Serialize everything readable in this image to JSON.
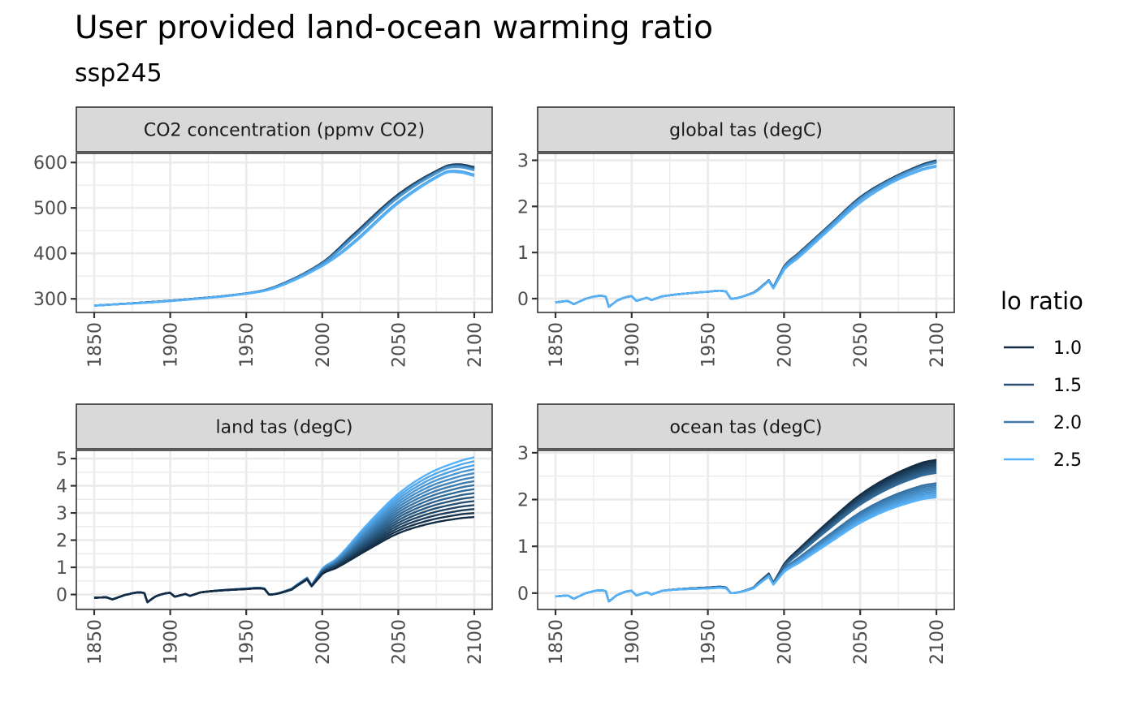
{
  "title": "User provided land-ocean warming ratio",
  "subtitle": "ssp245",
  "chart_data": [
    {
      "type": "line",
      "panel": "CO2 concentration (ppmv CO2)",
      "xlim": [
        1850,
        2100
      ],
      "x_ticks": [
        1850,
        1900,
        1950,
        2000,
        2050,
        2100
      ],
      "ylim": [
        270,
        620
      ],
      "y_ticks": [
        300,
        400,
        500,
        600
      ],
      "grid": true,
      "anchors_x": [
        1850,
        1900,
        1950,
        1970,
        2000,
        2020,
        2050,
        2080,
        2090,
        2100
      ],
      "anchors_low_ratio": [
        285,
        296,
        312,
        328,
        380,
        440,
        530,
        590,
        596,
        590
      ],
      "anchors_high_ratio": [
        285,
        295,
        311,
        325,
        372,
        420,
        510,
        575,
        578,
        570
      ]
    },
    {
      "type": "line",
      "panel": "global tas (degC)",
      "xlim": [
        1850,
        2100
      ],
      "x_ticks": [
        1850,
        1900,
        1950,
        2000,
        2050,
        2100
      ],
      "ylim": [
        -0.3,
        3.15
      ],
      "y_ticks": [
        0,
        1,
        2,
        3
      ],
      "grid": true,
      "anchors_x": [
        1850,
        1858,
        1862,
        1870,
        1883,
        1885,
        1890,
        1900,
        1903,
        1910,
        1913,
        1920,
        1950,
        1962,
        1965,
        1980,
        1983,
        1990,
        1993,
        2000,
        2010,
        2030,
        2050,
        2070,
        2090,
        2100
      ],
      "anchors_low_ratio": [
        -0.08,
        -0.05,
        -0.12,
        0.0,
        0.04,
        -0.18,
        -0.05,
        0.05,
        -0.05,
        0.02,
        -0.03,
        0.05,
        0.15,
        0.15,
        0.0,
        0.13,
        0.2,
        0.4,
        0.25,
        0.7,
        1.0,
        1.6,
        2.2,
        2.6,
        2.9,
        3.0
      ],
      "anchors_high_ratio": [
        -0.08,
        -0.05,
        -0.12,
        0.0,
        0.04,
        -0.18,
        -0.05,
        0.05,
        -0.05,
        0.02,
        -0.03,
        0.05,
        0.15,
        0.15,
        0.0,
        0.12,
        0.18,
        0.38,
        0.22,
        0.62,
        0.9,
        1.5,
        2.08,
        2.5,
        2.78,
        2.86
      ]
    },
    {
      "type": "line",
      "panel": "land tas (degC)",
      "xlim": [
        1850,
        2100
      ],
      "x_ticks": [
        1850,
        1900,
        1950,
        2000,
        2050,
        2100
      ],
      "ylim": [
        -0.55,
        5.3
      ],
      "y_ticks": [
        0,
        1,
        2,
        3,
        4,
        5
      ],
      "grid": true,
      "anchors_x": [
        1850,
        1858,
        1862,
        1870,
        1883,
        1885,
        1890,
        1900,
        1903,
        1910,
        1913,
        1920,
        1950,
        1962,
        1965,
        1980,
        1983,
        1990,
        1993,
        2000,
        2010,
        2030,
        2050,
        2070,
        2090,
        2100
      ],
      "anchors_low_ratio": [
        -0.12,
        -0.1,
        -0.18,
        -0.02,
        0.05,
        -0.28,
        -0.08,
        0.06,
        -0.08,
        0.02,
        -0.05,
        0.08,
        0.2,
        0.2,
        0.0,
        0.18,
        0.3,
        0.55,
        0.3,
        0.75,
        1.0,
        1.65,
        2.25,
        2.6,
        2.8,
        2.85
      ],
      "anchors_high_ratio": [
        -0.12,
        -0.1,
        -0.18,
        -0.02,
        0.05,
        -0.28,
        -0.08,
        0.06,
        -0.08,
        0.02,
        -0.05,
        0.08,
        0.22,
        0.22,
        0.0,
        0.22,
        0.35,
        0.62,
        0.35,
        0.95,
        1.35,
        2.6,
        3.7,
        4.45,
        4.9,
        5.05
      ]
    },
    {
      "type": "line",
      "panel": "ocean tas (degC)",
      "xlim": [
        1850,
        2100
      ],
      "x_ticks": [
        1850,
        1900,
        1950,
        2000,
        2050,
        2100
      ],
      "ylim": [
        -0.35,
        3.05
      ],
      "y_ticks": [
        0,
        1,
        2,
        3
      ],
      "grid": true,
      "anchors_x": [
        1850,
        1858,
        1862,
        1870,
        1883,
        1885,
        1890,
        1900,
        1903,
        1910,
        1913,
        1920,
        1950,
        1962,
        1965,
        1980,
        1983,
        1990,
        1993,
        2000,
        2010,
        2030,
        2050,
        2070,
        2090,
        2100
      ],
      "anchors_low_ratio": [
        -0.07,
        -0.05,
        -0.12,
        0.0,
        0.04,
        -0.18,
        -0.05,
        0.05,
        -0.05,
        0.02,
        -0.03,
        0.05,
        0.12,
        0.12,
        0.0,
        0.12,
        0.22,
        0.42,
        0.22,
        0.62,
        0.95,
        1.55,
        2.1,
        2.5,
        2.78,
        2.85
      ],
      "anchors_high_ratio": [
        -0.07,
        -0.05,
        -0.12,
        0.0,
        0.04,
        -0.18,
        -0.05,
        0.05,
        -0.05,
        0.02,
        -0.03,
        0.05,
        0.1,
        0.1,
        0.0,
        0.1,
        0.18,
        0.35,
        0.18,
        0.45,
        0.65,
        1.08,
        1.5,
        1.8,
        2.0,
        2.05
      ]
    }
  ],
  "legend": {
    "title": "lo ratio",
    "position": "right",
    "items": [
      {
        "label": "1.0",
        "color": "#132B43"
      },
      {
        "label": "1.5",
        "color": "#2B5073"
      },
      {
        "label": "2.0",
        "color": "#4279A8"
      },
      {
        "label": "2.5",
        "color": "#56B1F7"
      }
    ],
    "lo_ratio_range": [
      1.0,
      2.5
    ],
    "series_count": 16,
    "color_low": "#132B43",
    "color_high": "#56B1F7"
  }
}
